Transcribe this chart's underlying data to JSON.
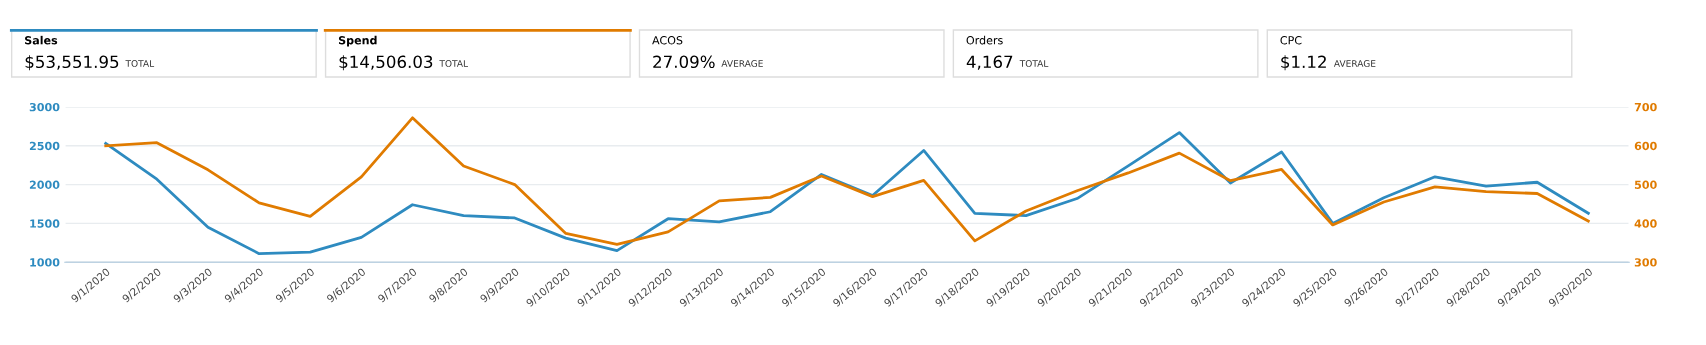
{
  "chart_data": [
    {
      "type": "other",
      "annotations": [
        "Sales",
        "$53,551.95",
        "TOTAL",
        "Spend",
        "$14,506.03",
        "TOTAL",
        "ACOS",
        "27.09%",
        "AVERAGE",
        "Orders",
        "4,167",
        "TOTAL",
        "CPC",
        "$1.12",
        "AVERAGE"
      ],
      "colors": [
        "#2e8bc0",
        "#e07b00",
        null,
        null,
        null
      ]
    },
    {
      "type": "line",
      "categories": [
        "9/1/2020",
        "9/2/2020",
        "9/3/2020",
        "9/4/2020",
        "9/5/2020",
        "9/6/2020",
        "9/7/2020",
        "9/8/2020",
        "9/9/2020",
        "9/10/2020",
        "9/11/2020",
        "9/12/2020",
        "9/13/2020",
        "9/14/2020",
        "9/15/2020",
        "9/16/2020",
        "9/17/2020",
        "9/18/2020",
        "9/19/2020",
        "9/20/2020",
        "9/21/2020",
        "9/22/2020",
        "9/23/2020",
        "9/24/2020",
        "9/25/2020",
        "9/26/2020",
        "9/27/2020",
        "9/28/2020",
        "9/29/2020",
        "9/30/2020"
      ],
      "series": [
        {
          "color": "#2e8bc0",
          "values": [
            2530,
            2070,
            1450,
            1110,
            1130,
            1320,
            1740,
            1600,
            1570,
            1310,
            1150,
            1560,
            1520,
            1650,
            2130,
            1860,
            2440,
            1630,
            1600,
            1820,
            2240,
            2670,
            2020,
            2420,
            1500,
            1830,
            2100,
            1980,
            2030,
            1630
          ]
        },
        {
          "color": "#e07b00",
          "axis": "y2",
          "values": [
            600,
            608,
            538,
            453,
            418,
            520,
            672,
            548,
            500,
            374,
            346,
            378,
            458,
            467,
            522,
            469,
            511,
            355,
            432,
            484,
            530,
            581,
            510,
            539,
            396,
            455,
            494,
            482,
            477,
            406
          ]
        }
      ],
      "ylim": [
        1000,
        3000
      ],
      "yticks": [
        1000,
        1500,
        2000,
        2500,
        3000
      ],
      "y2lim": [
        300,
        700
      ],
      "y2ticks": [
        300,
        400,
        500,
        600,
        700
      ],
      "grid": "y",
      "marker": "none",
      "line_style": "solid"
    }
  ]
}
